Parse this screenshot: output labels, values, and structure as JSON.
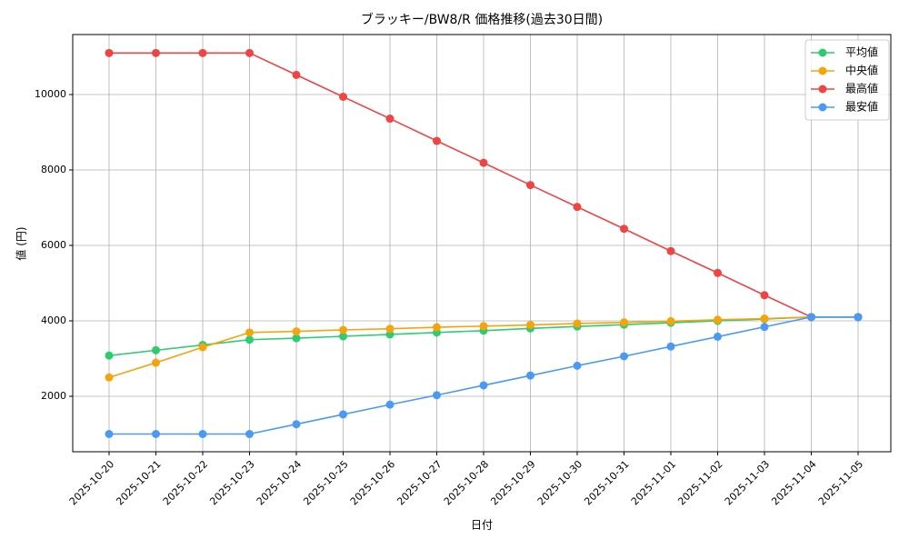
{
  "chart_data": {
    "type": "line",
    "title": "ブラッキー/BW8/R 価格推移(過去30日間)",
    "x_label": "日付",
    "y_label": "値 (円)",
    "categories": [
      "2025-10-20",
      "2025-10-21",
      "2025-10-22",
      "2025-10-23",
      "2025-10-24",
      "2025-10-25",
      "2025-10-26",
      "2025-10-27",
      "2025-10-28",
      "2025-10-29",
      "2025-10-30",
      "2025-10-31",
      "2025-11-01",
      "2025-11-02",
      "2025-11-03",
      "2025-11-04",
      "2025-11-05"
    ],
    "series": [
      {
        "name": "平均値",
        "color": "#2ecc71",
        "values": [
          3080,
          3220,
          3360,
          3500,
          3540,
          3590,
          3640,
          3690,
          3740,
          3800,
          3850,
          3900,
          3950,
          4000,
          4050,
          4100,
          4100
        ]
      },
      {
        "name": "中央値",
        "color": "#f5a40c",
        "values": [
          2500,
          2890,
          3300,
          3690,
          3720,
          3760,
          3790,
          3830,
          3860,
          3890,
          3930,
          3960,
          3990,
          4030,
          4060,
          4100,
          4100
        ]
      },
      {
        "name": "最高値",
        "color": "#ef4444",
        "values": [
          11100,
          11100,
          11100,
          11100,
          10520,
          9940,
          9360,
          8770,
          8190,
          7600,
          7020,
          6440,
          5850,
          5270,
          4680,
          4100,
          4100
        ]
      },
      {
        "name": "最安値",
        "color": "#4a9af5",
        "values": [
          1000,
          1000,
          1000,
          1000,
          1260,
          1520,
          1780,
          2030,
          2290,
          2550,
          2810,
          3060,
          3320,
          3580,
          3840,
          4100,
          4100
        ]
      }
    ],
    "ylim": [
      530,
      11590
    ],
    "yticks": [
      2000,
      4000,
      6000,
      8000,
      10000
    ],
    "grid": true,
    "legend": "upper-right"
  }
}
